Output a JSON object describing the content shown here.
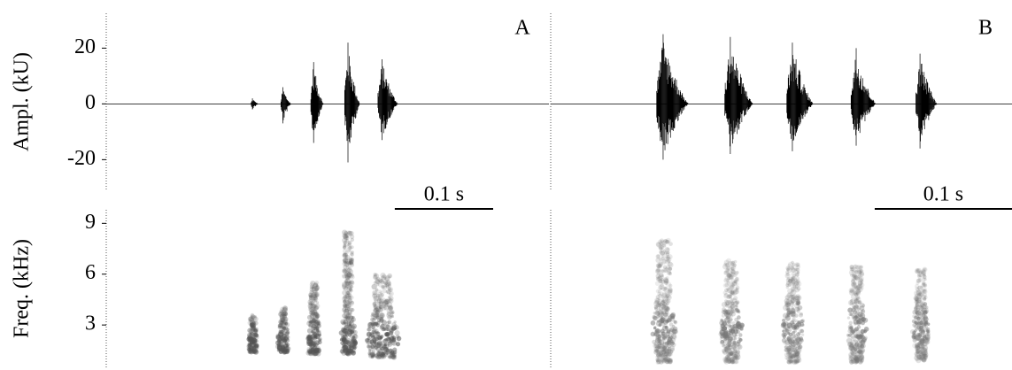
{
  "chart_data": [
    {
      "type": "waveform",
      "panel_label": "A",
      "ylabel": "Ampl. (kU)",
      "scalebar_label": "0.1 s",
      "scalebar_length": 0.1,
      "xlim": [
        0,
        0.45
      ],
      "ylim": [
        -31,
        32.5
      ],
      "yticks": [
        -20,
        0,
        20
      ],
      "color": "#000000",
      "x": [
        0.149,
        0.18,
        0.211,
        0.246,
        0.281
      ],
      "values_max": [
        2,
        6,
        15,
        22,
        16
      ],
      "values_min": [
        -2,
        -7,
        -14,
        -21,
        -13
      ],
      "durations": [
        0.006,
        0.008,
        0.01,
        0.012,
        0.016
      ]
    },
    {
      "type": "spectrogram",
      "ylabel": "Freq. (kHz)",
      "xlim": [
        0,
        0.45
      ],
      "ylim": [
        0.5,
        9.8
      ],
      "yticks": [
        3,
        6,
        9
      ],
      "color": "#555555",
      "x": [
        0.149,
        0.18,
        0.211,
        0.246,
        0.281
      ],
      "fmin": [
        1.4,
        1.4,
        1.3,
        1.3,
        1.1
      ],
      "fmax": [
        3.6,
        4.0,
        5.5,
        8.5,
        6.0
      ],
      "dominant": [
        2.0,
        2.0,
        2.1,
        2.2,
        2.2
      ],
      "durations": [
        0.008,
        0.01,
        0.012,
        0.014,
        0.03
      ]
    },
    {
      "type": "waveform",
      "panel_label": "B",
      "scalebar_label": "0.1 s",
      "scalebar_length": 0.1,
      "xlim": [
        0,
        0.336
      ],
      "ylim": [
        -31,
        32.5
      ],
      "color": "#000000",
      "x": [
        0.0826,
        0.1316,
        0.1765,
        0.223,
        0.2696
      ],
      "values_max": [
        25,
        24,
        22,
        20,
        18
      ],
      "values_min": [
        -20,
        -18,
        -17,
        -15,
        -16
      ],
      "durations": [
        0.018,
        0.016,
        0.015,
        0.014,
        0.012
      ]
    },
    {
      "type": "spectrogram",
      "xlim": [
        0,
        0.336
      ],
      "ylim": [
        0.5,
        9.8
      ],
      "color": "#777777",
      "x": [
        0.0826,
        0.1316,
        0.1765,
        0.223,
        0.2696
      ],
      "fmin": [
        0.8,
        0.8,
        0.8,
        0.8,
        0.9
      ],
      "fmax": [
        8.0,
        6.8,
        6.8,
        6.5,
        6.3
      ],
      "dominant": [
        2.8,
        2.8,
        2.8,
        2.8,
        2.8
      ],
      "durations": [
        0.016,
        0.015,
        0.014,
        0.013,
        0.011
      ]
    }
  ]
}
